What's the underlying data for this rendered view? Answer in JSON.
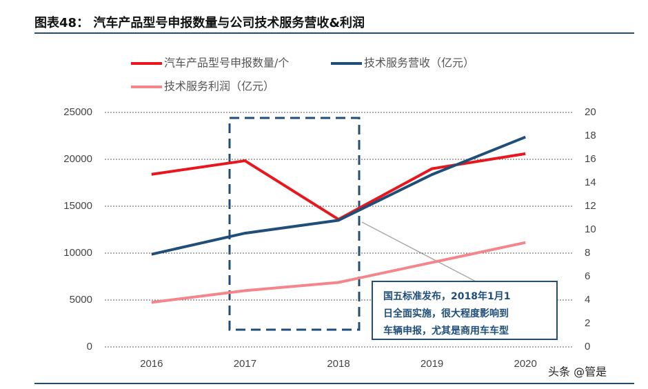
{
  "chart_data": {
    "type": "line",
    "title": "图表48：  汽车产品型号申报数量与公司技术服务营收&利润",
    "categories": [
      "2016",
      "2017",
      "2018",
      "2019",
      "2020"
    ],
    "series": [
      {
        "name": "汽车产品型号申报数量/个",
        "color": "#e8171e",
        "values": [
          18400,
          19850,
          13600,
          19000,
          20600
        ]
      },
      {
        "name": "技术服务营收（亿元）",
        "color": "#1f4e79",
        "axis": "y2",
        "values": [
          7.9,
          9.7,
          10.8,
          14.7,
          17.9
        ]
      },
      {
        "name": "技术服务利润（亿元）",
        "color": "#f4868b",
        "axis": "y2",
        "values": [
          3.8,
          4.8,
          5.5,
          7.2,
          8.9
        ]
      }
    ],
    "ylim": [
      0,
      25000
    ],
    "yticks": [
      0,
      5000,
      10000,
      15000,
      20000,
      25000
    ],
    "y2lim": [
      0,
      20
    ],
    "y2ticks": [
      0,
      2,
      4,
      6,
      8,
      10,
      12,
      14,
      16,
      18,
      20
    ],
    "grid": true,
    "annotation": [
      "国五标准发布，2018年1月1",
      "日全面实施，很大程度影响到",
      "车辆申报，尤其是商用车车型"
    ],
    "watermark": "头条 @管是"
  }
}
